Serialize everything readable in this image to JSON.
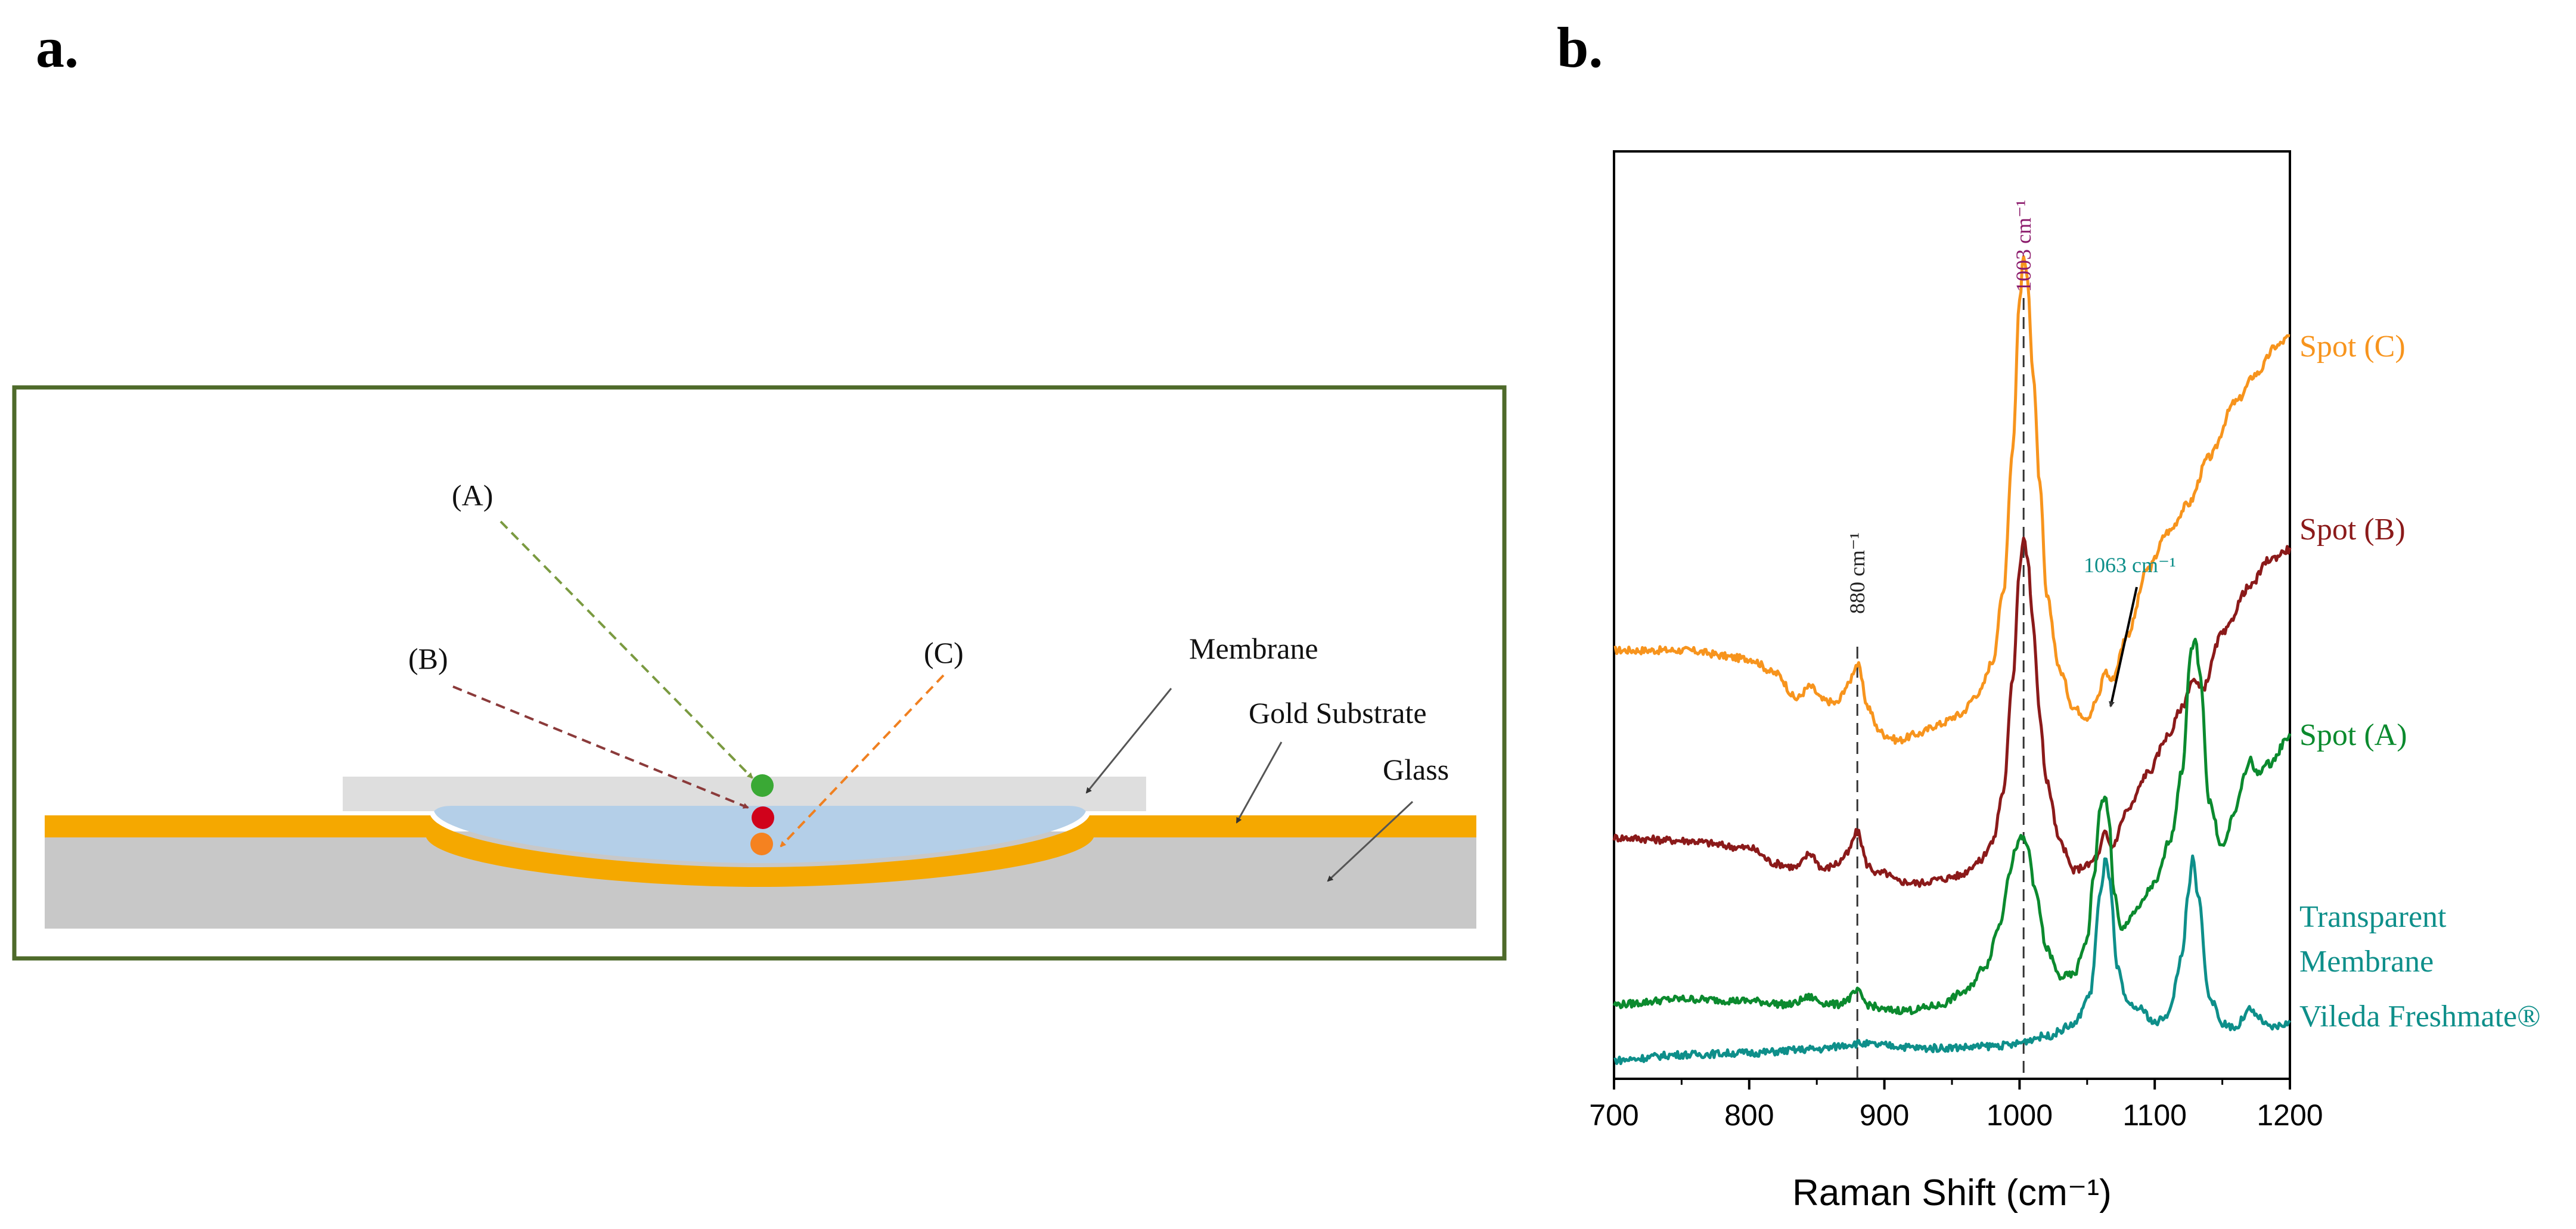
{
  "panels": {
    "a_label": "a.",
    "b_label": "b."
  },
  "diagram": {
    "spot_a_label": "(A)",
    "spot_b_label": "(B)",
    "spot_c_label": "(C)",
    "membrane_label": "Membrane",
    "gold_label": "Gold Substrate",
    "glass_label": "Glass",
    "colors": {
      "frame": "#4e6a2a",
      "gold": "#f5a800",
      "glass": "#c8c8c8",
      "membrane_plate": "#dedede",
      "liquid": "#b4cfe8",
      "arrow_a": "#7a9a40",
      "arrow_b": "#8b3a3a",
      "arrow_c": "#f08020",
      "dot_a": "#3aa935",
      "dot_b": "#d0021b",
      "dot_c": "#f58220"
    }
  },
  "chart_data": {
    "type": "line",
    "title": "",
    "xlabel": "Raman Shift (cm⁻¹)",
    "ylabel": "",
    "xlim": [
      700,
      1200
    ],
    "ylim": [
      0,
      1
    ],
    "x_ticks": [
      700,
      800,
      900,
      1000,
      1100,
      1200
    ],
    "x_tick_labels": [
      "700",
      "800",
      "900",
      "1000",
      "1100",
      "1200"
    ],
    "grid": false,
    "series": [
      {
        "name": "Spot (C)",
        "color": "#f7941d",
        "x": [
          700,
          750,
          800,
          820,
          835,
          845,
          855,
          865,
          872,
          880,
          888,
          895,
          900,
          910,
          925,
          940,
          955,
          970,
          980,
          988,
          995,
          1000,
          1003,
          1006,
          1010,
          1015,
          1020,
          1030,
          1040,
          1050,
          1058,
          1063,
          1068,
          1080,
          1095,
          1110,
          1125,
          1140,
          1160,
          1175,
          1190,
          1200
        ],
        "y": [
          0.462,
          0.462,
          0.453,
          0.437,
          0.41,
          0.423,
          0.408,
          0.405,
          0.423,
          0.447,
          0.401,
          0.378,
          0.371,
          0.365,
          0.372,
          0.382,
          0.392,
          0.416,
          0.45,
          0.525,
          0.68,
          0.84,
          0.887,
          0.86,
          0.76,
          0.64,
          0.52,
          0.44,
          0.4,
          0.39,
          0.41,
          0.44,
          0.43,
          0.48,
          0.55,
          0.59,
          0.62,
          0.67,
          0.73,
          0.76,
          0.79,
          0.8
        ]
      },
      {
        "name": "Spot (B)",
        "color": "#8b1a1a",
        "x": [
          700,
          750,
          800,
          820,
          835,
          845,
          855,
          865,
          872,
          880,
          888,
          895,
          900,
          910,
          925,
          940,
          955,
          970,
          980,
          988,
          995,
          1000,
          1003,
          1006,
          1010,
          1015,
          1020,
          1030,
          1040,
          1050,
          1058,
          1063,
          1068,
          1080,
          1095,
          1110,
          1120,
          1128,
          1135,
          1150,
          1170,
          1185,
          1200
        ],
        "y": [
          0.26,
          0.257,
          0.249,
          0.232,
          0.228,
          0.243,
          0.226,
          0.232,
          0.242,
          0.266,
          0.23,
          0.221,
          0.222,
          0.213,
          0.211,
          0.215,
          0.219,
          0.234,
          0.255,
          0.31,
          0.43,
          0.551,
          0.586,
          0.56,
          0.49,
          0.39,
          0.32,
          0.255,
          0.225,
          0.23,
          0.24,
          0.265,
          0.25,
          0.29,
          0.33,
          0.37,
          0.4,
          0.43,
          0.42,
          0.48,
          0.53,
          0.56,
          0.571
        ]
      },
      {
        "name": "Spot (A)",
        "color": "#0b8a2e",
        "x": [
          700,
          750,
          800,
          830,
          845,
          855,
          865,
          872,
          880,
          888,
          900,
          920,
          940,
          960,
          975,
          985,
          993,
          998,
          1002,
          1006,
          1012,
          1020,
          1030,
          1040,
          1050,
          1055,
          1060,
          1063,
          1066,
          1070,
          1075,
          1085,
          1100,
          1112,
          1120,
          1127,
          1130,
          1134,
          1140,
          1150,
          1160,
          1167,
          1170,
          1175,
          1185,
          1200
        ],
        "y": [
          0.08,
          0.086,
          0.084,
          0.08,
          0.088,
          0.082,
          0.08,
          0.085,
          0.094,
          0.08,
          0.074,
          0.074,
          0.079,
          0.094,
          0.122,
          0.165,
          0.225,
          0.252,
          0.26,
          0.25,
          0.2,
          0.14,
          0.11,
          0.112,
          0.15,
          0.22,
          0.295,
          0.305,
          0.28,
          0.2,
          0.16,
          0.18,
          0.21,
          0.26,
          0.33,
          0.46,
          0.473,
          0.43,
          0.3,
          0.25,
          0.29,
          0.33,
          0.345,
          0.33,
          0.34,
          0.37
        ]
      },
      {
        "name": "Vileda Freshmate®",
        "color": "#0e8f8a",
        "x": [
          700,
          750,
          800,
          850,
          880,
          900,
          930,
          960,
          990,
          1020,
          1040,
          1052,
          1060,
          1064,
          1067,
          1072,
          1080,
          1090,
          1100,
          1110,
          1120,
          1125,
          1128,
          1132,
          1140,
          1150,
          1160,
          1167,
          1170,
          1175,
          1185,
          1200
        ],
        "y": [
          0.02,
          0.026,
          0.028,
          0.032,
          0.038,
          0.036,
          0.033,
          0.034,
          0.036,
          0.046,
          0.058,
          0.09,
          0.2,
          0.24,
          0.21,
          0.12,
          0.08,
          0.075,
          0.06,
          0.07,
          0.13,
          0.2,
          0.238,
          0.2,
          0.09,
          0.06,
          0.055,
          0.068,
          0.075,
          0.068,
          0.055,
          0.06
        ]
      }
    ],
    "legend": {
      "placement": "right",
      "spot_c": "Spot (C)",
      "spot_b": "Spot (B)",
      "spot_a": "Spot (A)",
      "transparent_line1": "Transparent",
      "transparent_line2": "Membrane",
      "vileda": "Vileda Freshmate®"
    },
    "legend_colors": {
      "spot_c": "#f7941d",
      "spot_b": "#8b1a1a",
      "spot_a": "#0b8a2e",
      "transparent": "#0e8f8a",
      "vileda": "#0e8f8a"
    },
    "annotations": {
      "peak_880": "880 cm⁻¹",
      "peak_880_x": 880,
      "peak_1003": "1003 cm⁻¹",
      "peak_1003_x": 1003,
      "peak_1063": "1063 cm⁻¹",
      "peak_1063_x": 1063,
      "peak_1003_color": "#8b1a6b",
      "peak_1063_color": "#0e8f8a",
      "peak_880_color": "#222222"
    }
  }
}
